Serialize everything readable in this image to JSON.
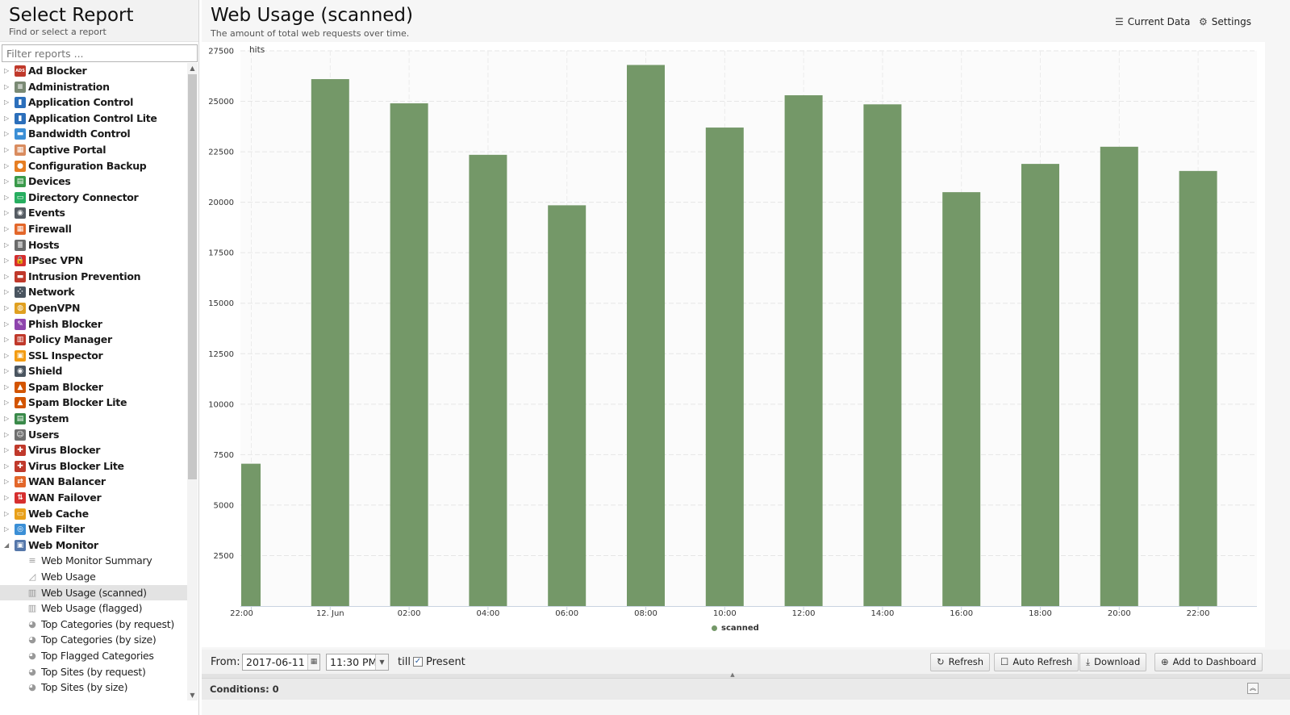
{
  "left_panel": {
    "title": "Select Report",
    "subtitle": "Find or select a report",
    "filter_placeholder": "Filter reports ...",
    "categories": [
      {
        "label": "Ad Blocker",
        "icon": "ad-blocker-icon",
        "color": "#c0392b",
        "glyph": "ADS"
      },
      {
        "label": "Administration",
        "icon": "administration-icon",
        "color": "#7a8a74",
        "glyph": "≡"
      },
      {
        "label": "Application Control",
        "icon": "application-control-icon",
        "color": "#2c6fbb",
        "glyph": "▮"
      },
      {
        "label": "Application Control Lite",
        "icon": "application-control-lite-icon",
        "color": "#2c6fbb",
        "glyph": "▮"
      },
      {
        "label": "Bandwidth Control",
        "icon": "bandwidth-control-icon",
        "color": "#3b8fd6",
        "glyph": "▬"
      },
      {
        "label": "Captive Portal",
        "icon": "captive-portal-icon",
        "color": "#d98c5f",
        "glyph": "▦"
      },
      {
        "label": "Configuration Backup",
        "icon": "configuration-backup-icon",
        "color": "#e67e22",
        "glyph": "●"
      },
      {
        "label": "Devices",
        "icon": "devices-icon",
        "color": "#3a9a4a",
        "glyph": "▤"
      },
      {
        "label": "Directory Connector",
        "icon": "directory-connector-icon",
        "color": "#27ae60",
        "glyph": "▭"
      },
      {
        "label": "Events",
        "icon": "events-icon",
        "color": "#555c63",
        "glyph": "◉"
      },
      {
        "label": "Firewall",
        "icon": "firewall-icon",
        "color": "#e3672a",
        "glyph": "▦"
      },
      {
        "label": "Hosts",
        "icon": "hosts-icon",
        "color": "#6b6b6b",
        "glyph": "≣"
      },
      {
        "label": "IPsec VPN",
        "icon": "ipsec-vpn-icon",
        "color": "#d62f2f",
        "glyph": "🔒"
      },
      {
        "label": "Intrusion Prevention",
        "icon": "intrusion-prevention-icon",
        "color": "#c0392b",
        "glyph": "▬"
      },
      {
        "label": "Network",
        "icon": "network-icon",
        "color": "#4a5560",
        "glyph": "⁘"
      },
      {
        "label": "OpenVPN",
        "icon": "openvpn-icon",
        "color": "#e0a020",
        "glyph": "◍"
      },
      {
        "label": "Phish Blocker",
        "icon": "phish-blocker-icon",
        "color": "#8e44ad",
        "glyph": "✎"
      },
      {
        "label": "Policy Manager",
        "icon": "policy-manager-icon",
        "color": "#c0392b",
        "glyph": "▥"
      },
      {
        "label": "SSL Inspector",
        "icon": "ssl-inspector-icon",
        "color": "#f39c12",
        "glyph": "▣"
      },
      {
        "label": "Shield",
        "icon": "shield-icon",
        "color": "#4a5560",
        "glyph": "◉"
      },
      {
        "label": "Spam Blocker",
        "icon": "spam-blocker-icon",
        "color": "#d35400",
        "glyph": "▲"
      },
      {
        "label": "Spam Blocker Lite",
        "icon": "spam-blocker-lite-icon",
        "color": "#d35400",
        "glyph": "▲"
      },
      {
        "label": "System",
        "icon": "system-icon",
        "color": "#3a8a4a",
        "glyph": "▤"
      },
      {
        "label": "Users",
        "icon": "users-icon",
        "color": "#707070",
        "glyph": "☺"
      },
      {
        "label": "Virus Blocker",
        "icon": "virus-blocker-icon",
        "color": "#c0392b",
        "glyph": "✚"
      },
      {
        "label": "Virus Blocker Lite",
        "icon": "virus-blocker-lite-icon",
        "color": "#c0392b",
        "glyph": "✚"
      },
      {
        "label": "WAN Balancer",
        "icon": "wan-balancer-icon",
        "color": "#e3672a",
        "glyph": "⇄"
      },
      {
        "label": "WAN Failover",
        "icon": "wan-failover-icon",
        "color": "#d62f2f",
        "glyph": "⇅"
      },
      {
        "label": "Web Cache",
        "icon": "web-cache-icon",
        "color": "#e8a01a",
        "glyph": "▭"
      },
      {
        "label": "Web Filter",
        "icon": "web-filter-icon",
        "color": "#3b8fd6",
        "glyph": "◎"
      },
      {
        "label": "Web Monitor",
        "icon": "web-monitor-icon",
        "color": "#5577aa",
        "glyph": "▣",
        "expanded": true
      }
    ],
    "web_monitor_reports": [
      {
        "label": "Web Monitor Summary",
        "icon": "text-report-icon",
        "glyph": "≡"
      },
      {
        "label": "Web Usage",
        "icon": "area-chart-icon",
        "glyph": "◿"
      },
      {
        "label": "Web Usage (scanned)",
        "icon": "bar-chart-icon",
        "glyph": "▥",
        "selected": true
      },
      {
        "label": "Web Usage (flagged)",
        "icon": "bar-chart-icon",
        "glyph": "▥"
      },
      {
        "label": "Top Categories (by request)",
        "icon": "pie-chart-icon",
        "glyph": "◕"
      },
      {
        "label": "Top Categories (by size)",
        "icon": "pie-chart-icon",
        "glyph": "◕"
      },
      {
        "label": "Top Flagged Categories",
        "icon": "pie-chart-icon",
        "glyph": "◕"
      },
      {
        "label": "Top Sites (by request)",
        "icon": "pie-chart-icon",
        "glyph": "◕"
      },
      {
        "label": "Top Sites (by size)",
        "icon": "pie-chart-icon",
        "glyph": "◕"
      }
    ]
  },
  "report": {
    "title": "Web Usage (scanned)",
    "description": "The amount of total web requests over time.",
    "current_data_label": "Current Data",
    "settings_label": "Settings"
  },
  "chart_data": {
    "type": "bar",
    "ylabel": "hits",
    "ylim": [
      0,
      27500
    ],
    "yticks": [
      2500,
      5000,
      7500,
      10000,
      12500,
      15000,
      17500,
      20000,
      22500,
      25000,
      27500
    ],
    "x_tick_labels": [
      "22:00",
      "12. Jun",
      "02:00",
      "04:00",
      "06:00",
      "08:00",
      "10:00",
      "12:00",
      "14:00",
      "16:00",
      "18:00",
      "20:00",
      "22:00"
    ],
    "categories": [
      "22:00",
      "00:00",
      "02:00",
      "04:00",
      "06:00",
      "08:00",
      "10:00",
      "12:00",
      "14:00",
      "16:00",
      "18:00",
      "20:00",
      "22:00"
    ],
    "series": [
      {
        "name": "scanned",
        "color": "#749868",
        "values": [
          7050,
          26100,
          24900,
          22350,
          19850,
          26800,
          23700,
          25300,
          24850,
          20500,
          21900,
          22750,
          21550
        ]
      }
    ],
    "grid": true,
    "legend": "bottom-center"
  },
  "toolbar": {
    "from_label": "From:",
    "date_value": "2017-06-11",
    "time_value": "11:30 PM",
    "till_label": "till",
    "present_label": "Present",
    "present_checked": true,
    "refresh_label": "Refresh",
    "auto_refresh_label": "Auto Refresh",
    "download_label": "Download",
    "add_dashboard_label": "Add to Dashboard"
  },
  "conditions": {
    "label": "Conditions: 0"
  }
}
